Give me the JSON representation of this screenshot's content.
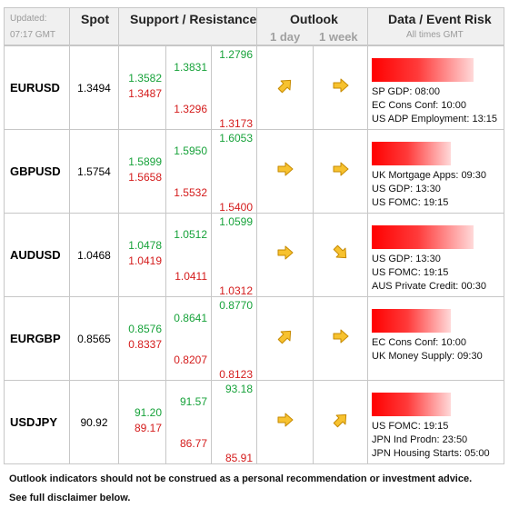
{
  "header": {
    "updated_label": "Updated:",
    "updated_time": "07:17 GMT",
    "spot": "Spot",
    "support_resistance": "Support / Resistance",
    "outlook": "Outlook",
    "outlook_1d": "1 day",
    "outlook_1w": "1 week",
    "data_event_risk": "Data / Event Risk",
    "all_times": "All times GMT"
  },
  "rows": [
    {
      "pair": "EURUSD",
      "spot": "1.3494",
      "levels": [
        "1.3582",
        "1.3487",
        "1.3831",
        "1.3296",
        "1.2796",
        "1.3173"
      ],
      "outlook_1d": "up",
      "outlook_1w": "right",
      "risk_fill": 0.8,
      "events": [
        "SP GDP: 08:00",
        "EC Cons Conf: 10:00",
        "US ADP Employment: 13:15"
      ]
    },
    {
      "pair": "GBPUSD",
      "spot": "1.5754",
      "levels": [
        "1.5899",
        "1.5658",
        "1.5950",
        "1.5532",
        "1.6053",
        "1.5400"
      ],
      "outlook_1d": "right",
      "outlook_1w": "right",
      "risk_fill": 0.62,
      "events": [
        "UK Mortgage Apps: 09:30",
        "US GDP: 13:30",
        "US FOMC: 19:15"
      ]
    },
    {
      "pair": "AUDUSD",
      "spot": "1.0468",
      "levels": [
        "1.0478",
        "1.0419",
        "1.0512",
        "1.0411",
        "1.0599",
        "1.0312"
      ],
      "outlook_1d": "right",
      "outlook_1w": "down",
      "risk_fill": 0.8,
      "events": [
        "US GDP: 13:30",
        "US FOMC: 19:15",
        "AUS Private Credit: 00:30"
      ]
    },
    {
      "pair": "EURGBP",
      "spot": "0.8565",
      "levels": [
        "0.8576",
        "0.8337",
        "0.8641",
        "0.8207",
        "0.8770",
        "0.8123"
      ],
      "outlook_1d": "up",
      "outlook_1w": "right",
      "risk_fill": 0.62,
      "events": [
        "EC Cons Conf: 10:00",
        "UK Money Supply: 09:30"
      ]
    },
    {
      "pair": "USDJPY",
      "spot": "90.92",
      "levels": [
        "91.20",
        "89.17",
        "91.57",
        "86.77",
        "93.18",
        "85.91"
      ],
      "outlook_1d": "right",
      "outlook_1w": "up",
      "risk_fill": 0.62,
      "events": [
        "US FOMC: 19:15",
        "JPN Ind Prodn: 23:50",
        "JPN Housing Starts: 05:00"
      ]
    }
  ],
  "footer": {
    "line1": "Outlook indicators should not be construed as a personal recommendation or investment advice.",
    "line2": "See full disclaimer below."
  },
  "colors": {
    "support": "#17a23a",
    "resistance": "#d41b1b",
    "arrow_fill": "#f7c22f",
    "arrow_stroke": "#c68a00",
    "header_bg": "#f0f0f0",
    "border": "#c7c7c7"
  },
  "icons": {
    "up": "arrow-up-right-icon",
    "right": "arrow-right-icon",
    "down": "arrow-down-right-icon"
  }
}
